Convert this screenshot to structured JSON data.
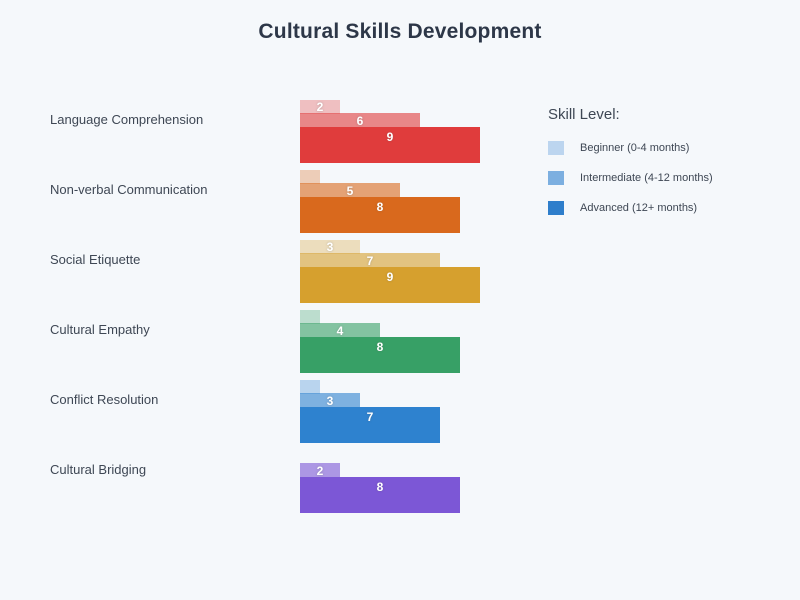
{
  "title": "Cultural Skills Development",
  "colors": {
    "background": "#f5f8fb",
    "title_text": "#2d3748",
    "category_text": "#3e4754",
    "value_label_text": "#ffffff"
  },
  "legend": {
    "title": "Skill Level:",
    "items": [
      {
        "label": "Beginner (0-4 months)",
        "color": "#bcd5ef"
      },
      {
        "label": "Intermediate (4-12 months)",
        "color": "#7cafe0"
      },
      {
        "label": "Advanced (12+ months)",
        "color": "#2e7ecb"
      }
    ]
  },
  "chart_data": {
    "type": "bar",
    "orientation": "horizontal",
    "title": "Cultural Skills Development",
    "categories": [
      "Language Comprehension",
      "Non-verbal Communication",
      "Social Etiquette",
      "Cultural Empathy",
      "Conflict Resolution",
      "Cultural Bridging"
    ],
    "series": [
      {
        "name": "Beginner (0-4 months)",
        "level": "beginner",
        "values": [
          2,
          1,
          3,
          1,
          1,
          0
        ]
      },
      {
        "name": "Intermediate (4-12 months)",
        "level": "intermediate",
        "values": [
          6,
          5,
          7,
          4,
          3,
          2
        ]
      },
      {
        "name": "Advanced (12+ months)",
        "level": "advanced",
        "values": [
          9,
          8,
          9,
          8,
          7,
          8
        ]
      }
    ],
    "group_base_colors": [
      "#e03c3c",
      "#d9691d",
      "#d6a02e",
      "#37a066",
      "#2e82cf",
      "#7c57d6"
    ],
    "series_alphas": [
      0.3,
      0.6,
      1.0
    ],
    "xlim": [
      0,
      9
    ],
    "value_labels_visible_min": 2,
    "grid": false,
    "axes_visible": false,
    "legend_position": "right"
  }
}
